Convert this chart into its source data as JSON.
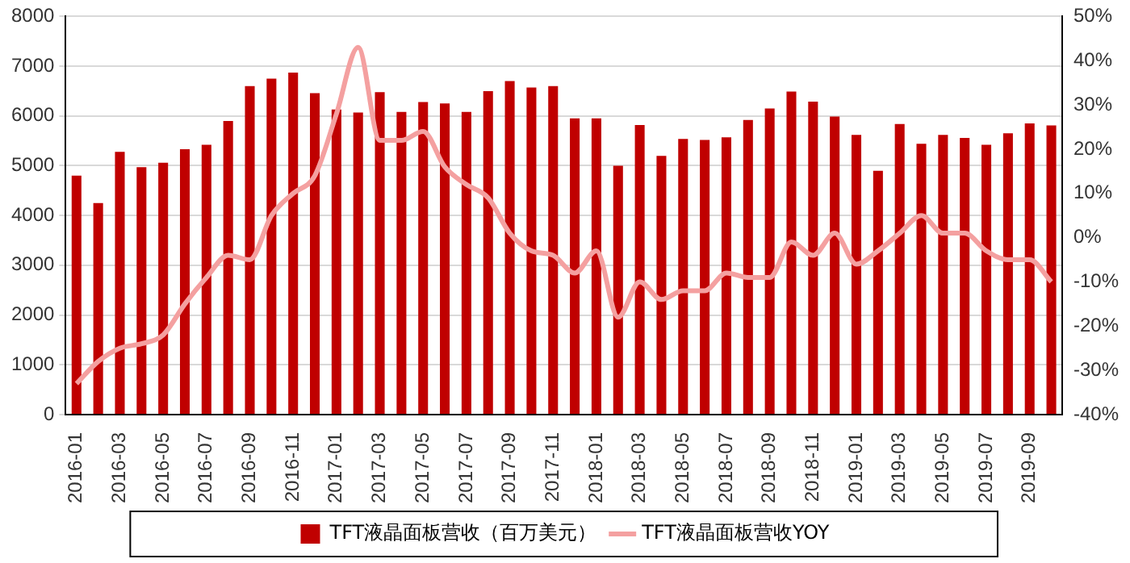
{
  "chart_data": {
    "type": "bar",
    "categories": [
      "2016-01",
      null,
      "2016-03",
      null,
      "2016-05",
      null,
      "2016-07",
      null,
      "2016-09",
      null,
      "2016-11",
      null,
      "2017-01",
      null,
      "2017-03",
      null,
      "2017-05",
      null,
      "2017-07",
      null,
      "2017-09",
      null,
      "2017-11",
      null,
      "2018-01",
      null,
      "2018-03",
      null,
      "2018-05",
      null,
      "2018-07",
      null,
      "2018-09",
      null,
      "2018-11",
      null,
      "2019-01",
      null,
      "2019-03",
      null,
      "2019-05",
      null,
      "2019-07",
      null,
      "2019-09",
      null
    ],
    "series": [
      {
        "name": "TFT液晶面板营收（百万美元）",
        "color": "#c00000",
        "values": [
          4800,
          4250,
          5280,
          4970,
          5060,
          5330,
          5420,
          5900,
          6600,
          6750,
          6870,
          6460,
          6130,
          6070,
          6480,
          6080,
          6280,
          6250,
          6080,
          6500,
          6700,
          6570,
          6600,
          5950,
          5950,
          5000,
          5820,
          5200,
          5540,
          5520,
          5570,
          5920,
          6150,
          6490,
          6290,
          5990,
          5620,
          4900,
          5840,
          5440,
          5620,
          5560,
          5420,
          5650,
          5850,
          5810
        ]
      },
      {
        "name": "TFT液晶面板营收YOY",
        "type": "line",
        "axis": "y2",
        "color": "#f4a0a0",
        "values": [
          -33,
          -28,
          -25,
          -24,
          -22,
          -15,
          -9,
          -4,
          -5,
          5,
          10,
          14,
          28,
          43,
          22,
          22,
          24,
          16,
          12,
          9,
          1,
          -3,
          -4,
          -8,
          -3,
          -18,
          -10,
          -14,
          -12,
          -12,
          -8,
          -9,
          -9,
          -1,
          -4,
          1,
          -6,
          -3,
          1,
          5,
          1,
          1,
          -3,
          -5,
          -5,
          -10
        ]
      }
    ],
    "ylim": [
      0,
      8000
    ],
    "yticks": [
      0,
      1000,
      2000,
      3000,
      4000,
      5000,
      6000,
      7000,
      8000
    ],
    "y2lim": [
      -40,
      50
    ],
    "y2ticks": [
      {
        "value": -40,
        "label": "-40%"
      },
      {
        "value": -30,
        "label": "-30%"
      },
      {
        "value": -20,
        "label": "-20%"
      },
      {
        "value": -10,
        "label": "-10%"
      },
      {
        "value": 0,
        "label": "0%"
      },
      {
        "value": 10,
        "label": "10%"
      },
      {
        "value": 20,
        "label": "20%"
      },
      {
        "value": 30,
        "label": "30%"
      },
      {
        "value": 40,
        "label": "40%"
      },
      {
        "value": 50,
        "label": "50%"
      }
    ],
    "grid": "y",
    "legend": "bottom",
    "marker": "none",
    "line_style": "solid"
  }
}
